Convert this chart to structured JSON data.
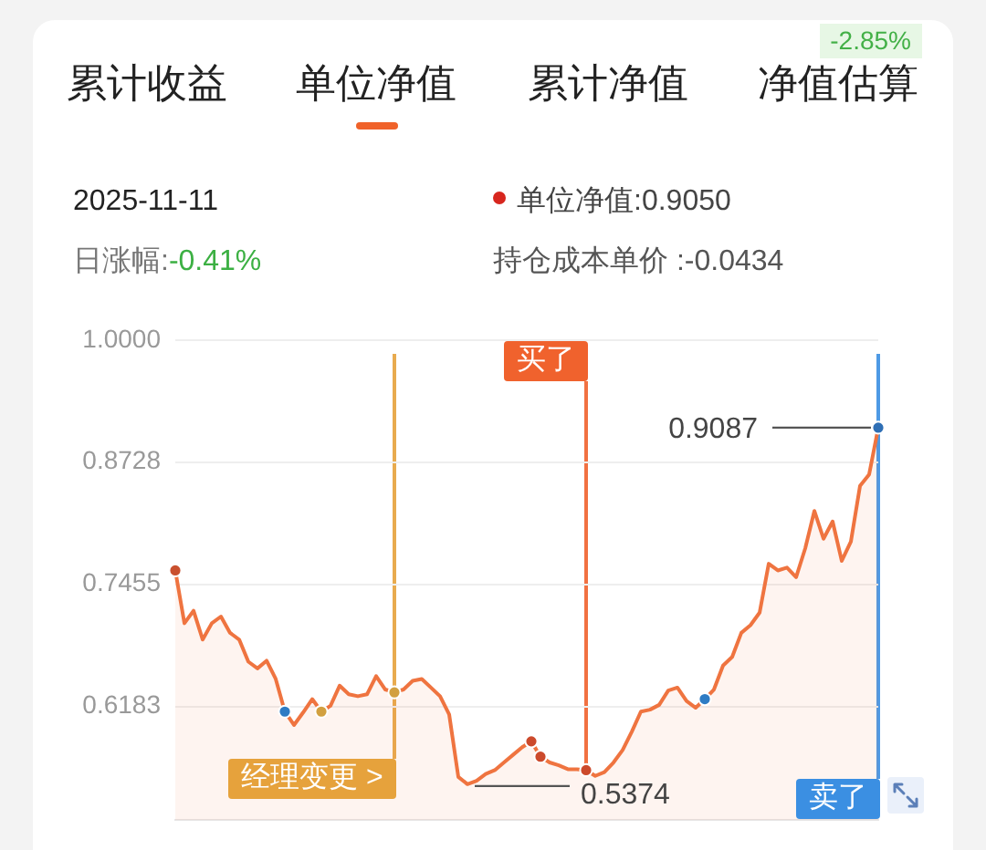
{
  "chart_data": {
    "type": "area",
    "annotations": [
      "累计收益",
      "单位净值",
      "累计净值",
      "净值估算",
      "-2.85%",
      "2025-11-11",
      "单位净值:0.9050",
      "日涨幅:",
      "-0.41%",
      "持仓成本单价 :-0.0434",
      "0.9087",
      "0.5374",
      "经理变更 >",
      "买了",
      "卖了"
    ],
    "categories": [
      null,
      null,
      null,
      null,
      null,
      null,
      null,
      null,
      null,
      null,
      null,
      null,
      null,
      null,
      null,
      null,
      null,
      null,
      null,
      null,
      null,
      null,
      null,
      null,
      null,
      null,
      null,
      null,
      null,
      null,
      null,
      null,
      null,
      null,
      null,
      null,
      null,
      null,
      null,
      null,
      null,
      null,
      null,
      null,
      null,
      null,
      null,
      null,
      null,
      null,
      null,
      null,
      null,
      null,
      null,
      null,
      null,
      null,
      null,
      null,
      null,
      null,
      null,
      null,
      null,
      null,
      null,
      null,
      null,
      null,
      null,
      null,
      null,
      null,
      null,
      null,
      null,
      null
    ],
    "series": [
      {
        "color": "#ef7440",
        "values": [
          0.76,
          0.705,
          0.718,
          0.688,
          0.705,
          0.712,
          0.695,
          0.688,
          0.665,
          0.658,
          0.666,
          0.647,
          0.613,
          0.599,
          0.612,
          0.626,
          0.613,
          0.619,
          0.64,
          0.631,
          0.629,
          0.631,
          0.65,
          0.636,
          0.633,
          0.636,
          0.645,
          0.647,
          0.638,
          0.629,
          0.61,
          0.545,
          0.5374,
          0.541,
          0.548,
          0.552,
          0.56,
          0.568,
          0.576,
          0.582,
          0.566,
          0.56,
          0.557,
          0.553,
          0.553,
          0.552,
          0.546,
          0.55,
          0.56,
          0.573,
          0.592,
          0.613,
          0.615,
          0.62,
          0.635,
          0.638,
          0.624,
          0.617,
          0.626,
          0.636,
          0.661,
          0.67,
          0.695,
          0.703,
          0.716,
          0.767,
          0.76,
          0.763,
          0.753,
          0.783,
          0.822,
          0.793,
          0.811,
          0.77,
          0.79,
          0.848,
          0.86,
          0.9087
        ]
      },
      {
        "type": "scatter",
        "marker": "circle",
        "values": [
          0.76,
          null,
          null,
          null,
          null,
          null,
          null,
          null,
          null,
          null,
          null,
          null,
          0.613,
          null,
          null,
          null,
          0.613,
          null,
          null,
          null,
          null,
          null,
          null,
          null,
          0.633,
          null,
          null,
          null,
          null,
          null,
          null,
          null,
          null,
          null,
          null,
          null,
          null,
          null,
          null,
          0.582,
          0.566,
          null,
          null,
          null,
          null,
          0.552,
          null,
          null,
          null,
          null,
          null,
          null,
          null,
          null,
          null,
          null,
          null,
          null,
          0.626,
          null,
          null,
          null,
          null,
          null,
          null,
          null,
          null,
          null,
          null,
          null,
          null,
          null,
          null,
          null,
          null,
          null,
          null,
          0.9087
        ],
        "colors": [
          "#c9502e",
          null,
          null,
          null,
          null,
          null,
          null,
          null,
          null,
          null,
          null,
          null,
          "#2f7cc4",
          null,
          null,
          null,
          "#d2a040",
          null,
          null,
          null,
          null,
          null,
          null,
          null,
          "#d2a040",
          null,
          null,
          null,
          null,
          null,
          null,
          null,
          null,
          null,
          null,
          null,
          null,
          null,
          null,
          "#cc4a2c",
          "#cc4a2c",
          null,
          null,
          null,
          null,
          "#cc4a2c",
          null,
          null,
          null,
          null,
          null,
          null,
          null,
          null,
          null,
          null,
          null,
          null,
          "#2f7cc4",
          null,
          null,
          null,
          null,
          null,
          null,
          null,
          null,
          null,
          null,
          null,
          null,
          null,
          null,
          null,
          null,
          null,
          null,
          "#2f6fb5"
        ]
      }
    ],
    "ylim": [
      0.5,
      1
    ],
    "yticks": [
      {
        "value": 1,
        "label": "1.0000"
      },
      0.8728,
      0.7455,
      0.6183
    ],
    "grid": "y",
    "tick_labels": "y"
  }
}
